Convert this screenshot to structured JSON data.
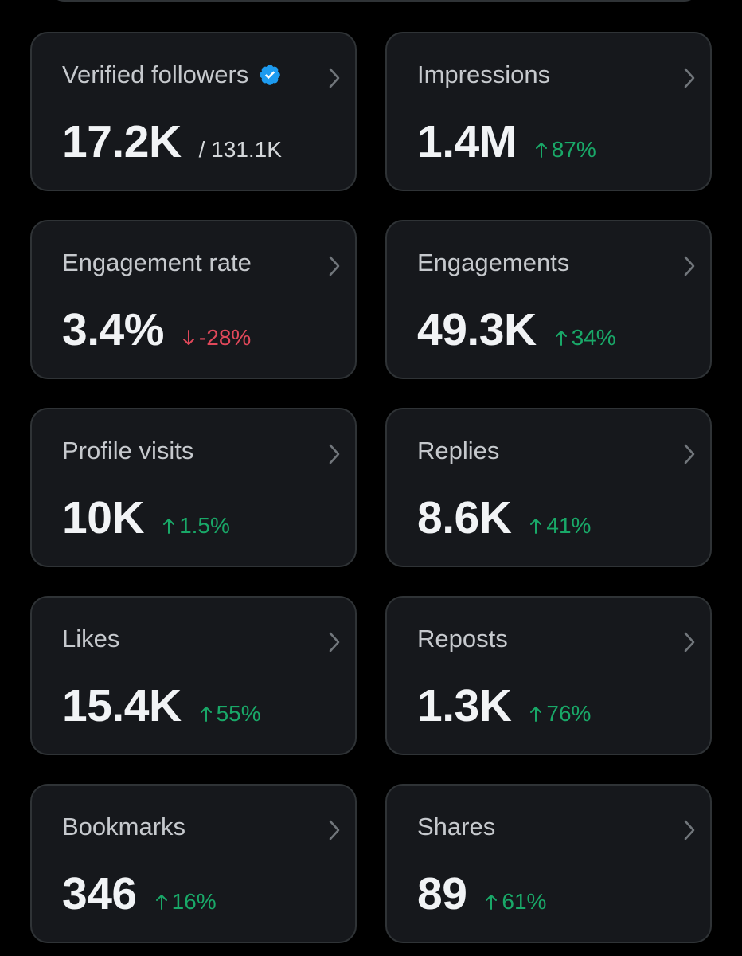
{
  "colors": {
    "background": "#000000",
    "card_background": "#16181c",
    "card_border": "#2f3336",
    "label": "#c6c9cd",
    "value": "#f1f3f5",
    "positive": "#19a868",
    "negative": "#e0485a",
    "verified_badge": "#1d9bf0"
  },
  "cards": [
    {
      "label": "Verified followers",
      "value": "17.2K",
      "sub": "/ 131.1K",
      "verified_badge": true,
      "icon": "chevron-right-icon"
    },
    {
      "label": "Impressions",
      "value": "1.4M",
      "change": "87%",
      "direction": "up",
      "icon": "chevron-right-icon"
    },
    {
      "label": "Engagement rate",
      "value": "3.4%",
      "change": "-28%",
      "direction": "down",
      "icon": "chevron-right-icon"
    },
    {
      "label": "Engagements",
      "value": "49.3K",
      "change": "34%",
      "direction": "up",
      "icon": "chevron-right-icon"
    },
    {
      "label": "Profile visits",
      "value": "10K",
      "change": "1.5%",
      "direction": "up",
      "icon": "chevron-right-icon"
    },
    {
      "label": "Replies",
      "value": "8.6K",
      "change": "41%",
      "direction": "up",
      "icon": "chevron-right-icon"
    },
    {
      "label": "Likes",
      "value": "15.4K",
      "change": "55%",
      "direction": "up",
      "icon": "chevron-right-icon"
    },
    {
      "label": "Reposts",
      "value": "1.3K",
      "change": "76%",
      "direction": "up",
      "icon": "chevron-right-icon"
    },
    {
      "label": "Bookmarks",
      "value": "346",
      "change": "16%",
      "direction": "up",
      "icon": "chevron-right-icon"
    },
    {
      "label": "Shares",
      "value": "89",
      "change": "61%",
      "direction": "up",
      "icon": "chevron-right-icon"
    }
  ]
}
